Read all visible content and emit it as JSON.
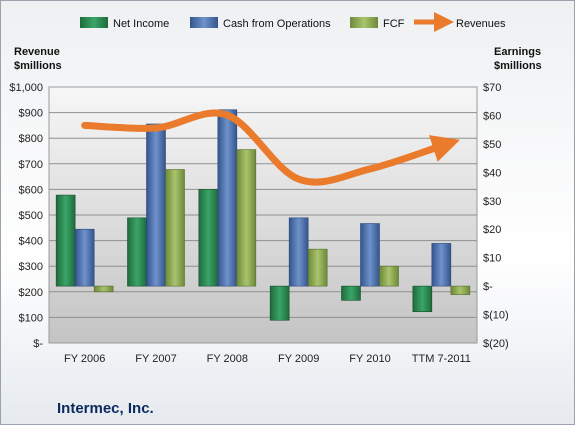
{
  "chart_data": {
    "type": "bar",
    "title": "",
    "company": "Intermec, Inc.",
    "categories": [
      "FY 2006",
      "FY 2007",
      "FY 2008",
      "FY 2009",
      "FY 2010",
      "TTM 7-2011"
    ],
    "left_axis": {
      "title_line1": "Revenue",
      "title_line2": "$millions",
      "ylim": [
        0,
        1000
      ],
      "ticks": [
        0,
        100,
        200,
        300,
        400,
        500,
        600,
        700,
        800,
        900,
        1000
      ],
      "tick_labels": [
        "$-",
        "$100",
        "$200",
        "$300",
        "$400",
        "$500",
        "$600",
        "$700",
        "$800",
        "$900",
        "$1,000"
      ]
    },
    "right_axis": {
      "title_line1": "Earnings",
      "title_line2": "$millions",
      "ylim": [
        -20,
        70
      ],
      "ticks": [
        -20,
        -10,
        0,
        10,
        20,
        30,
        40,
        50,
        60,
        70
      ],
      "tick_labels": [
        "$(20)",
        "$(10)",
        "$-",
        "$10",
        "$20",
        "$30",
        "$40",
        "$50",
        "$60",
        "$70"
      ]
    },
    "series": [
      {
        "name": "Net Income",
        "axis": "right",
        "kind": "bar",
        "color": "#2e8b57",
        "values": [
          32,
          24,
          34,
          -12,
          -5,
          -9
        ]
      },
      {
        "name": "Cash from Operations",
        "axis": "right",
        "kind": "bar",
        "color": "#4f73b0",
        "values": [
          20,
          57,
          62,
          24,
          22,
          15
        ]
      },
      {
        "name": "FCF",
        "axis": "right",
        "kind": "bar",
        "color": "#8faa52",
        "values": [
          -2,
          41,
          48,
          13,
          7,
          -3
        ]
      },
      {
        "name": "Revenues",
        "axis": "left",
        "kind": "line",
        "color": "#ea7a2c",
        "values": [
          850,
          840,
          890,
          640,
          680,
          770
        ]
      }
    ],
    "legend": {
      "position": "top",
      "entries": [
        "Net Income",
        "Cash from Operations",
        "FCF",
        "Revenues"
      ]
    },
    "grid": true
  }
}
